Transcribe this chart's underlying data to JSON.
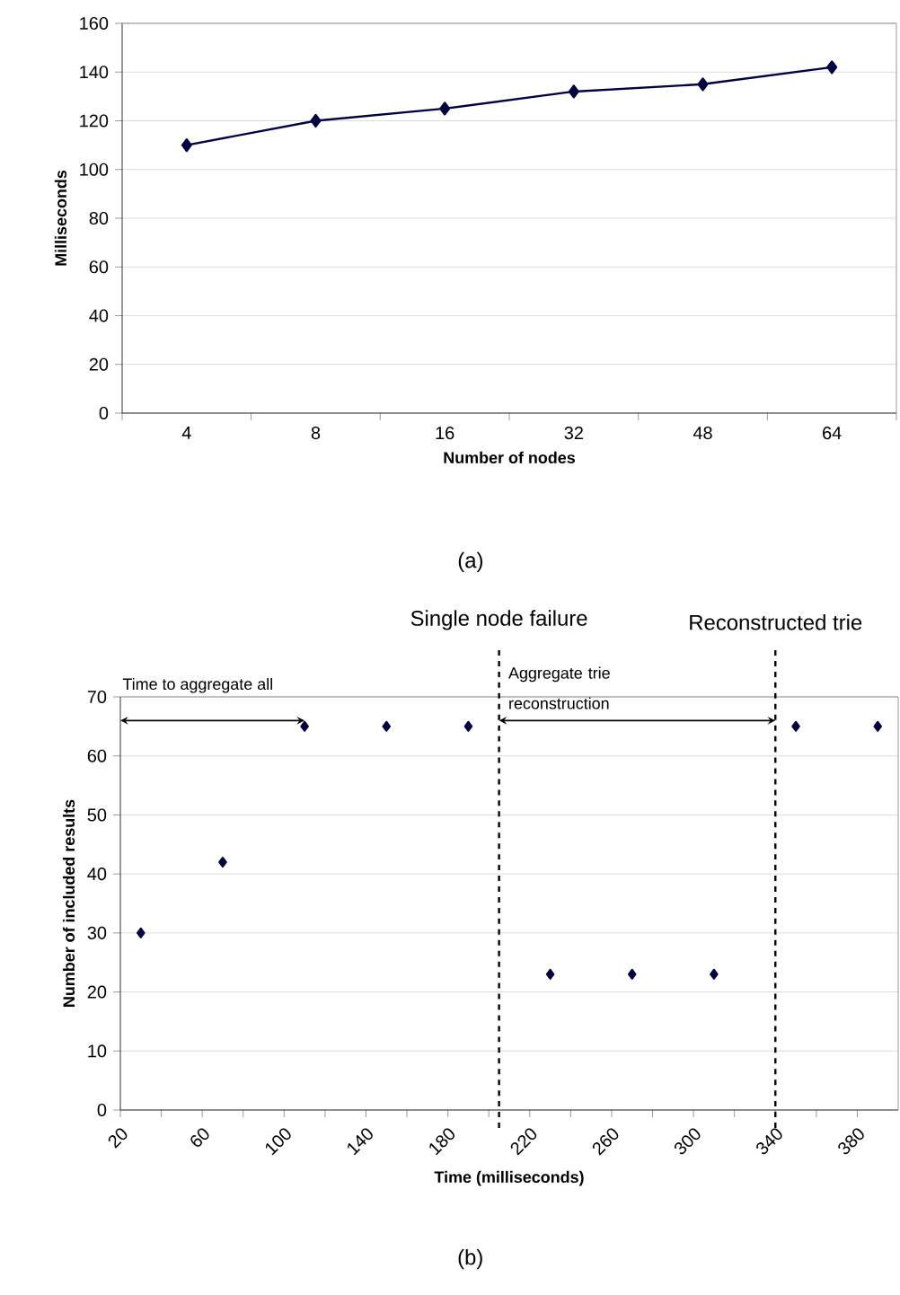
{
  "chart_data": [
    {
      "type": "line",
      "xlabel": "Number of nodes",
      "ylabel": "Milliseconds",
      "categories": [
        "4",
        "8",
        "16",
        "32",
        "48",
        "64"
      ],
      "values": [
        110,
        120,
        125,
        132,
        135,
        142
      ],
      "color": "#000040",
      "marker": "diamond",
      "line_style": "solid",
      "ylim": [
        0,
        160
      ],
      "yticks": [
        0,
        20,
        40,
        60,
        80,
        100,
        120,
        140,
        160
      ],
      "grid": "y",
      "annotations": [
        "(a)"
      ]
    },
    {
      "type": "scatter",
      "xlabel": "Time (milliseconds)",
      "ylabel": "Number of included results",
      "x": [
        30,
        70,
        110,
        150,
        190,
        230,
        270,
        310,
        350,
        390
      ],
      "values": [
        30,
        42,
        65,
        65,
        65,
        23,
        23,
        23,
        65,
        65
      ],
      "color": "#000040",
      "marker": "diamond",
      "xlim": [
        20,
        400
      ],
      "xticks": [
        20,
        60,
        100,
        140,
        180,
        220,
        260,
        300,
        340,
        380
      ],
      "ylim": [
        0,
        70
      ],
      "yticks": [
        0,
        10,
        20,
        30,
        40,
        50,
        60,
        70
      ],
      "grid": "y",
      "ref_lines": [
        {
          "axis": "x",
          "value": 205,
          "label": "Single node failure",
          "color": "#000000",
          "line_style": "dashed"
        },
        {
          "axis": "x",
          "value": 340,
          "label": "Reconstructed trie",
          "color": "#000000",
          "line_style": "dashed"
        }
      ],
      "annotations": [
        "(b)",
        {
          "text": "Time to aggregate all",
          "x": 110,
          "y": 66
        },
        {
          "text": "Aggregate trie reconstruction",
          "x": 340,
          "y": 66
        }
      ]
    }
  ]
}
